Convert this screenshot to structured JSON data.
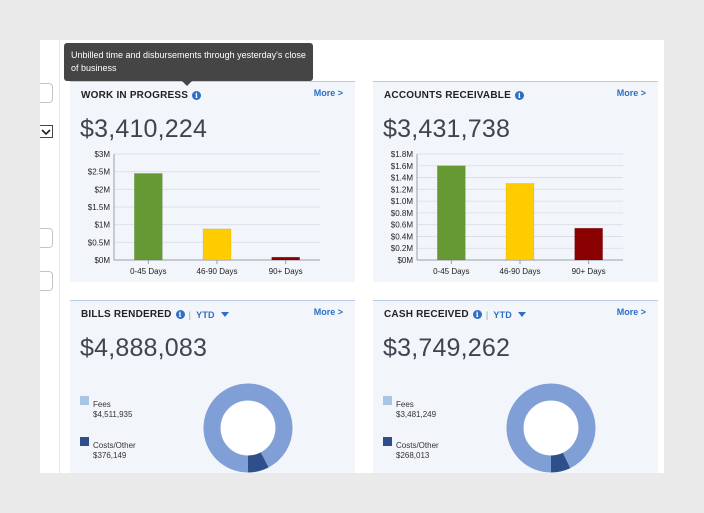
{
  "tooltip": {
    "text": "Unbilled time and disbursements through yesterday's close of business"
  },
  "wip": {
    "title": "WORK IN PROGRESS",
    "more": "More >",
    "amount": "$3,410,224",
    "chart_data": {
      "type": "bar",
      "categories": [
        "0-45 Days",
        "46-90 Days",
        "90+ Days"
      ],
      "values": [
        2.45,
        0.88,
        0.08
      ],
      "colors": [
        "#669933",
        "#ffcc00",
        "#8b0000"
      ],
      "ylim": [
        0,
        3
      ],
      "yticks": [
        0,
        0.5,
        1,
        1.5,
        2,
        2.5,
        3
      ],
      "ytick_labels": [
        "$0M",
        "$0.5M",
        "$1M",
        "$1.5M",
        "$2M",
        "$2.5M",
        "$3M"
      ]
    }
  },
  "ar": {
    "title": "ACCOUNTS RECEIVABLE",
    "more": "More >",
    "amount": "$3,431,738",
    "chart_data": {
      "type": "bar",
      "categories": [
        "0-45 Days",
        "46-90 Days",
        "90+ Days"
      ],
      "values": [
        1.6,
        1.3,
        0.54
      ],
      "colors": [
        "#669933",
        "#ffcc00",
        "#8b0000"
      ],
      "ylim": [
        0,
        1.8
      ],
      "yticks": [
        0,
        0.2,
        0.4,
        0.6,
        0.8,
        1.0,
        1.2,
        1.4,
        1.6,
        1.8
      ],
      "ytick_labels": [
        "$0M",
        "$0.2M",
        "$0.4M",
        "$0.6M",
        "$0.8M",
        "$1.0M",
        "$1.2M",
        "$1.4M",
        "$1.6M",
        "$1.8M"
      ]
    }
  },
  "bills": {
    "title": "BILLS RENDERED",
    "period": "YTD",
    "more": "More >",
    "amount": "$4,888,083",
    "legend": [
      {
        "label": "Fees",
        "value": "$4,511,935",
        "color": "#a9c5e6"
      },
      {
        "label": "Costs/Other",
        "value": "$376,149",
        "color": "#2e4f8a"
      }
    ],
    "chart_data": {
      "type": "pie",
      "categories": [
        "Fees",
        "Costs/Other"
      ],
      "values": [
        4511935,
        376149
      ],
      "colors": [
        "#7f9fd6",
        "#2e4f8a"
      ]
    }
  },
  "cash": {
    "title": "CASH RECEIVED",
    "period": "YTD",
    "more": "More >",
    "amount": "$3,749,262",
    "legend": [
      {
        "label": "Fees",
        "value": "$3,481,249",
        "color": "#a9c5e6"
      },
      {
        "label": "Costs/Other",
        "value": "$268,013",
        "color": "#2e4f8a"
      }
    ],
    "chart_data": {
      "type": "pie",
      "categories": [
        "Fees",
        "Costs/Other"
      ],
      "values": [
        3481249,
        268013
      ],
      "colors": [
        "#7f9fd6",
        "#2e4f8a"
      ]
    }
  }
}
